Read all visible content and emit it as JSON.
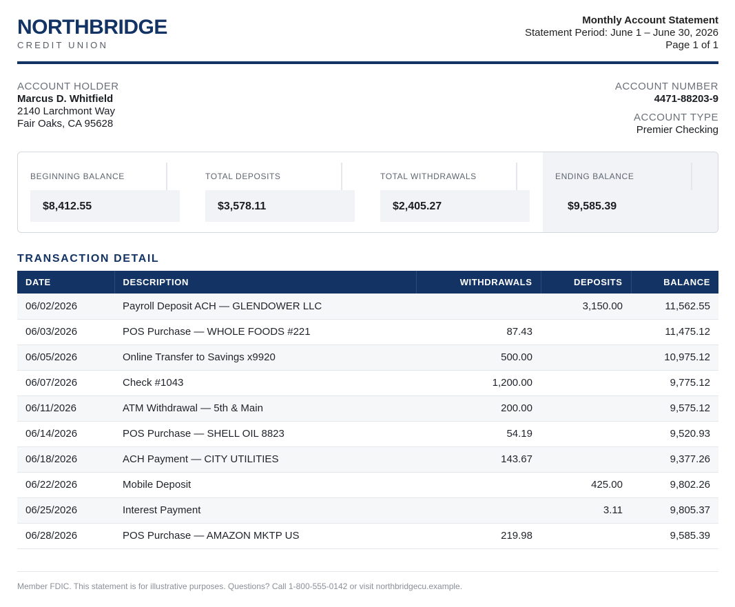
{
  "brand": {
    "name": "NORTHBRIDGE",
    "subtitle": "CREDIT UNION"
  },
  "statement": {
    "title": "Monthly Account Statement",
    "period": "Statement Period: June 1 – June 30, 2026",
    "page": "Page 1 of 1"
  },
  "holder": {
    "label": "ACCOUNT HOLDER",
    "name": "Marcus D. Whitfield",
    "address1": "2140 Larchmont Way",
    "address2": "Fair Oaks, CA 95628"
  },
  "account": {
    "number_label": "ACCOUNT NUMBER",
    "number": "4471-88203-9",
    "type_label": "ACCOUNT TYPE",
    "type": "Premier Checking"
  },
  "summary": [
    {
      "label": "BEGINNING BALANCE",
      "value": "$8,412.55"
    },
    {
      "label": "TOTAL DEPOSITS",
      "value": "$3,578.11"
    },
    {
      "label": "TOTAL WITHDRAWALS",
      "value": "$2,405.27"
    },
    {
      "label": "ENDING BALANCE",
      "value": "$9,585.39"
    }
  ],
  "transactions": {
    "title": "TRANSACTION DETAIL",
    "columns": [
      "DATE",
      "DESCRIPTION",
      "WITHDRAWALS",
      "DEPOSITS",
      "BALANCE"
    ],
    "rows": [
      {
        "date": "06/02/2026",
        "description": "Payroll Deposit ACH — GLENDOWER LLC",
        "withdrawal": "",
        "deposit": "3,150.00",
        "balance": "11,562.55"
      },
      {
        "date": "06/03/2026",
        "description": "POS Purchase — WHOLE FOODS #221",
        "withdrawal": "87.43",
        "deposit": "",
        "balance": "11,475.12"
      },
      {
        "date": "06/05/2026",
        "description": "Online Transfer to Savings x9920",
        "withdrawal": "500.00",
        "deposit": "",
        "balance": "10,975.12"
      },
      {
        "date": "06/07/2026",
        "description": "Check #1043",
        "withdrawal": "1,200.00",
        "deposit": "",
        "balance": "9,775.12"
      },
      {
        "date": "06/11/2026",
        "description": "ATM Withdrawal — 5th & Main",
        "withdrawal": "200.00",
        "deposit": "",
        "balance": "9,575.12"
      },
      {
        "date": "06/14/2026",
        "description": "POS Purchase — SHELL OIL 8823",
        "withdrawal": "54.19",
        "deposit": "",
        "balance": "9,520.93"
      },
      {
        "date": "06/18/2026",
        "description": "ACH Payment — CITY UTILITIES",
        "withdrawal": "143.67",
        "deposit": "",
        "balance": "9,377.26"
      },
      {
        "date": "06/22/2026",
        "description": "Mobile Deposit",
        "withdrawal": "",
        "deposit": "425.00",
        "balance": "9,802.26"
      },
      {
        "date": "06/25/2026",
        "description": "Interest Payment",
        "withdrawal": "",
        "deposit": "3.11",
        "balance": "9,805.37"
      },
      {
        "date": "06/28/2026",
        "description": "POS Purchase — AMAZON MKTP US",
        "withdrawal": "219.98",
        "deposit": "",
        "balance": "9,585.39"
      }
    ]
  },
  "footer": "Member FDIC. This statement is for illustrative purposes. Questions? Call 1-800-555-0142 or visit northbridgecu.example."
}
